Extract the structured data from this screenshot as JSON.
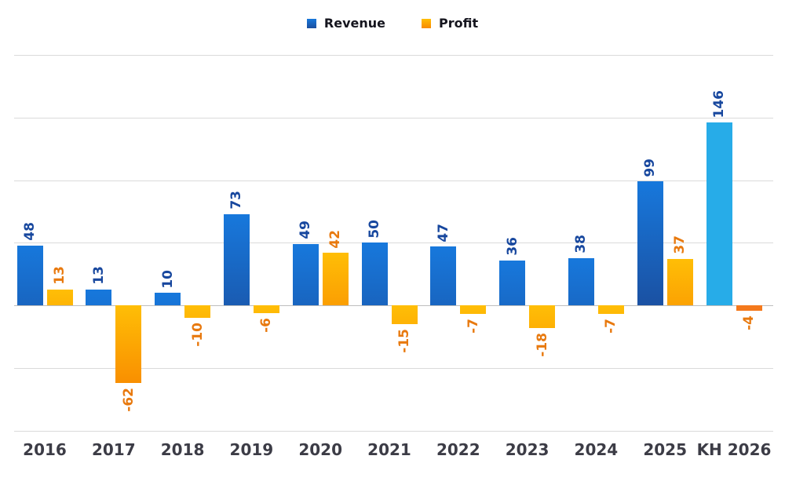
{
  "chart_data": {
    "type": "bar",
    "title": "",
    "categories": [
      "2016",
      "2017",
      "2018",
      "2019",
      "2020",
      "2021",
      "2022",
      "2023",
      "2024",
      "2025",
      "KH 2026"
    ],
    "series": [
      {
        "name": "Revenue",
        "values": [
          48,
          13,
          10,
          73,
          49,
          50,
          47,
          36,
          38,
          99,
          146
        ],
        "color_top": "#1778dc",
        "color_bottom": "#1b4e9e",
        "forecast_color": "#27ace8",
        "label_color": "#17479e"
      },
      {
        "name": "Profit",
        "values": [
          13,
          -62,
          -10,
          -6,
          42,
          -15,
          -7,
          -18,
          -7,
          37,
          -4
        ],
        "color_top": "#ffbe06",
        "color_bottom": "#f88a00",
        "forecast_color": "#f4791c",
        "label_color": "#e8790e"
      }
    ],
    "forecast_index": 10,
    "ylim": [
      -100,
      200
    ],
    "gridline_step": 50,
    "grid": true,
    "legend_position": "top",
    "gridline_color": "#dadada",
    "zeroline_color": "#bdbdbd",
    "axis_label_color": "#3c3c46",
    "background_color": "#ffffff"
  }
}
